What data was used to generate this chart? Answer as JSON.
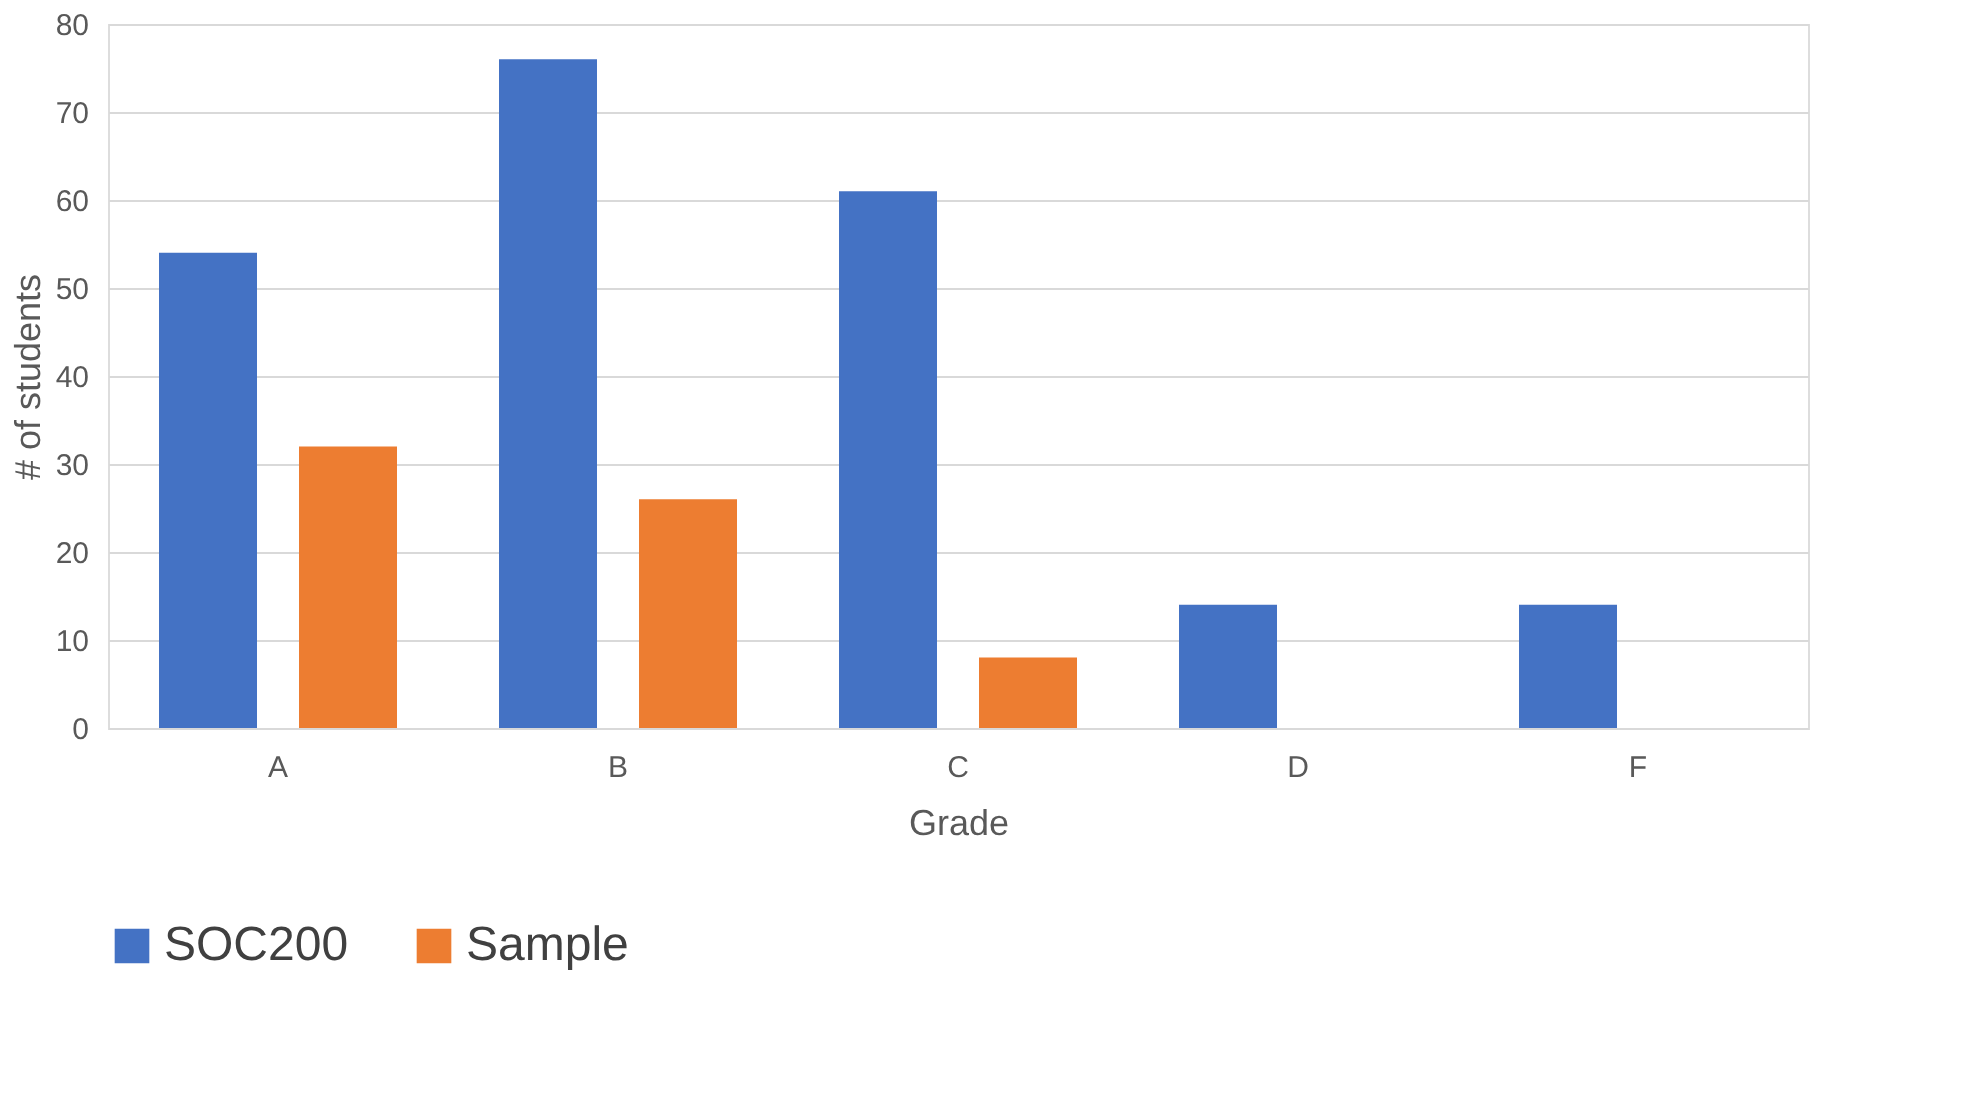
{
  "chart_data": {
    "type": "bar",
    "xlabel": "Grade",
    "ylabel": "# of students",
    "categories": [
      "A",
      "B",
      "C",
      "D",
      "F"
    ],
    "series": [
      {
        "name": "SOC200",
        "color": "#4472c4",
        "values": [
          54,
          76,
          61,
          14,
          14
        ]
      },
      {
        "name": "Sample",
        "color": "#ed7d31",
        "values": [
          32,
          26,
          8,
          0,
          0
        ]
      }
    ],
    "ylim": [
      0,
      80
    ],
    "yticks": [
      0,
      10,
      20,
      30,
      40,
      50,
      60,
      70,
      80
    ],
    "grid": "y",
    "legend": "bottom"
  }
}
